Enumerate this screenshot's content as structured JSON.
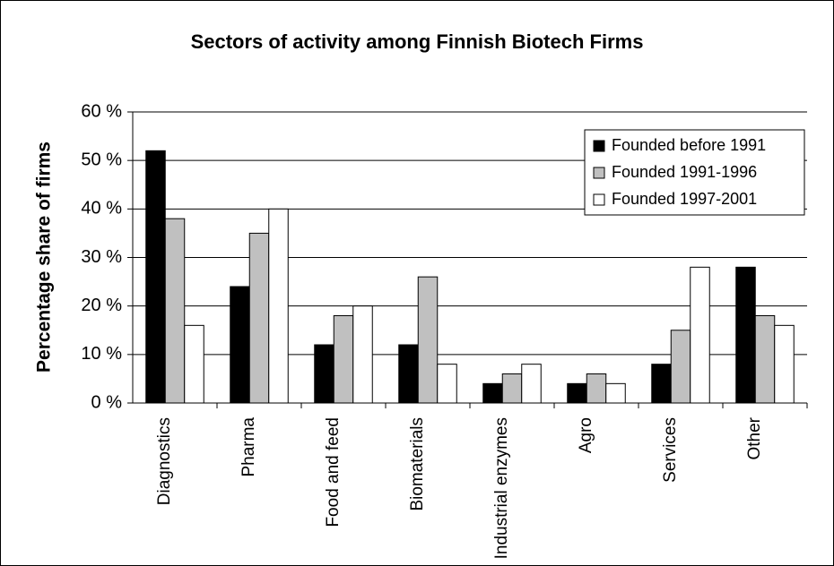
{
  "chart_data": {
    "type": "bar",
    "title": "Sectors of activity among Finnish Biotech Firms",
    "y_label": "Percentage share of firms",
    "categories": [
      "Diagnostics",
      "Pharma",
      "Food and feed",
      "Biomaterials",
      "Industrial enzymes",
      "Agro",
      "Services",
      "Other"
    ],
    "series": [
      {
        "name": "Founded before 1991",
        "color": "#000000",
        "values": [
          52,
          24,
          12,
          12,
          4,
          4,
          8,
          28
        ]
      },
      {
        "name": "Founded 1991-1996",
        "color": "#c0c0c0",
        "values": [
          38,
          35,
          18,
          26,
          6,
          6,
          15,
          18
        ]
      },
      {
        "name": "Founded 1997-2001",
        "color": "#ffffff",
        "values": [
          16,
          40,
          20,
          8,
          8,
          4,
          28,
          16
        ]
      }
    ],
    "ylim": [
      0,
      60
    ],
    "yticks": [
      {
        "value": 0,
        "label": "0 %"
      },
      {
        "value": 10,
        "label": "10 %"
      },
      {
        "value": 20,
        "label": "20 %"
      },
      {
        "value": 30,
        "label": "30 %"
      },
      {
        "value": 40,
        "label": "40 %"
      },
      {
        "value": 50,
        "label": "50 %"
      },
      {
        "value": 60,
        "label": "60 %"
      }
    ],
    "grid": true,
    "legend": "upper right"
  }
}
